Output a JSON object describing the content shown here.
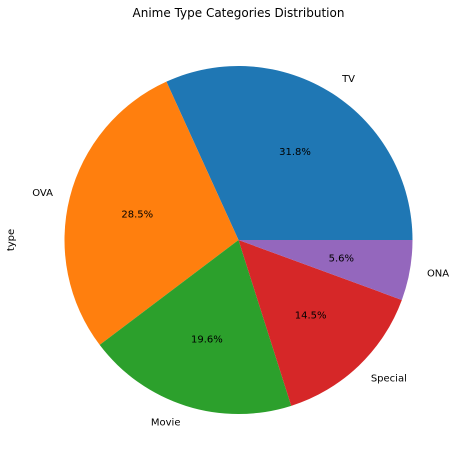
{
  "chart_data": {
    "type": "pie",
    "title": "Anime Type Categories Distribution",
    "ylabel": "type",
    "categories": [
      "TV",
      "OVA",
      "Movie",
      "Special",
      "ONA"
    ],
    "values": [
      31.8,
      28.5,
      19.6,
      14.5,
      5.6
    ],
    "percent_labels": [
      "31.8%",
      "28.5%",
      "19.6%",
      "14.5%",
      "5.6%"
    ],
    "colors": [
      "#1f77b4",
      "#ff7f0e",
      "#2ca02c",
      "#d62728",
      "#9467bd"
    ],
    "start_angle_deg": 0,
    "direction": "counterclockwise",
    "legend": "none"
  }
}
